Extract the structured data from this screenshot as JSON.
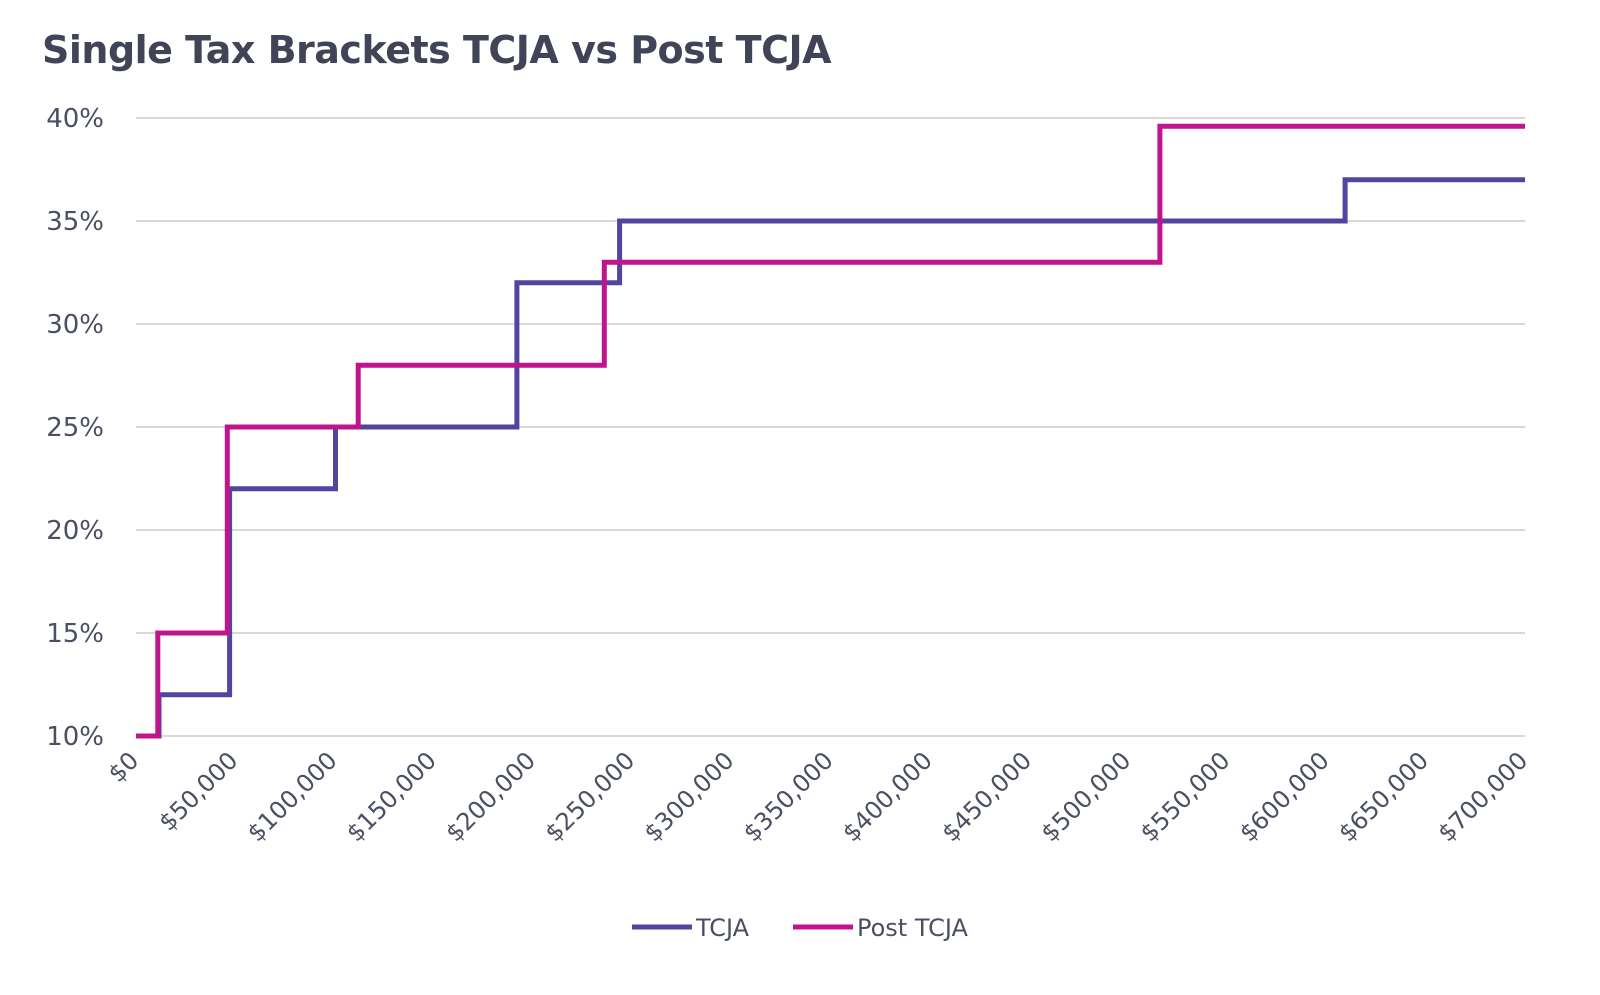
{
  "chart_data": {
    "type": "line",
    "title": "Single Tax Brackets TCJA vs Post TCJA",
    "xlabel": "",
    "ylabel": "",
    "xlim": [
      0,
      700000
    ],
    "ylim": [
      10,
      40
    ],
    "y_ticks": [
      10,
      15,
      20,
      25,
      30,
      35,
      40
    ],
    "y_tick_labels": [
      "10%",
      "15%",
      "20%",
      "25%",
      "30%",
      "35%",
      "40%"
    ],
    "x_ticks": [
      0,
      50000,
      100000,
      150000,
      200000,
      250000,
      300000,
      350000,
      400000,
      450000,
      500000,
      550000,
      600000,
      650000,
      700000
    ],
    "x_tick_labels": [
      "$0",
      "$50,000",
      "$100,000",
      "$150,000",
      "$200,000",
      "$250,000",
      "$300,000",
      "$350,000",
      "$400,000",
      "$450,000",
      "$500,000",
      "$550,000",
      "$600,000",
      "$650,000",
      "$700,000"
    ],
    "grid": "horizontal",
    "legend_position": "bottom",
    "series": [
      {
        "name": "TCJA",
        "color": "#5046a0",
        "step_points": [
          [
            0,
            10
          ],
          [
            11600,
            10
          ],
          [
            11600,
            12
          ],
          [
            47150,
            12
          ],
          [
            47150,
            22
          ],
          [
            100525,
            22
          ],
          [
            100525,
            25
          ],
          [
            191950,
            25
          ],
          [
            191950,
            32
          ],
          [
            243725,
            32
          ],
          [
            243725,
            35
          ],
          [
            609350,
            35
          ],
          [
            609350,
            37
          ],
          [
            700000,
            37
          ]
        ]
      },
      {
        "name": "Post TCJA",
        "color": "#c0148c",
        "step_points": [
          [
            0,
            10
          ],
          [
            11000,
            10
          ],
          [
            11000,
            15
          ],
          [
            46000,
            15
          ],
          [
            46000,
            25
          ],
          [
            112000,
            25
          ],
          [
            112000,
            28
          ],
          [
            236000,
            28
          ],
          [
            236000,
            33
          ],
          [
            516000,
            33
          ],
          [
            516000,
            39.6
          ],
          [
            700000,
            39.6
          ]
        ]
      }
    ]
  }
}
